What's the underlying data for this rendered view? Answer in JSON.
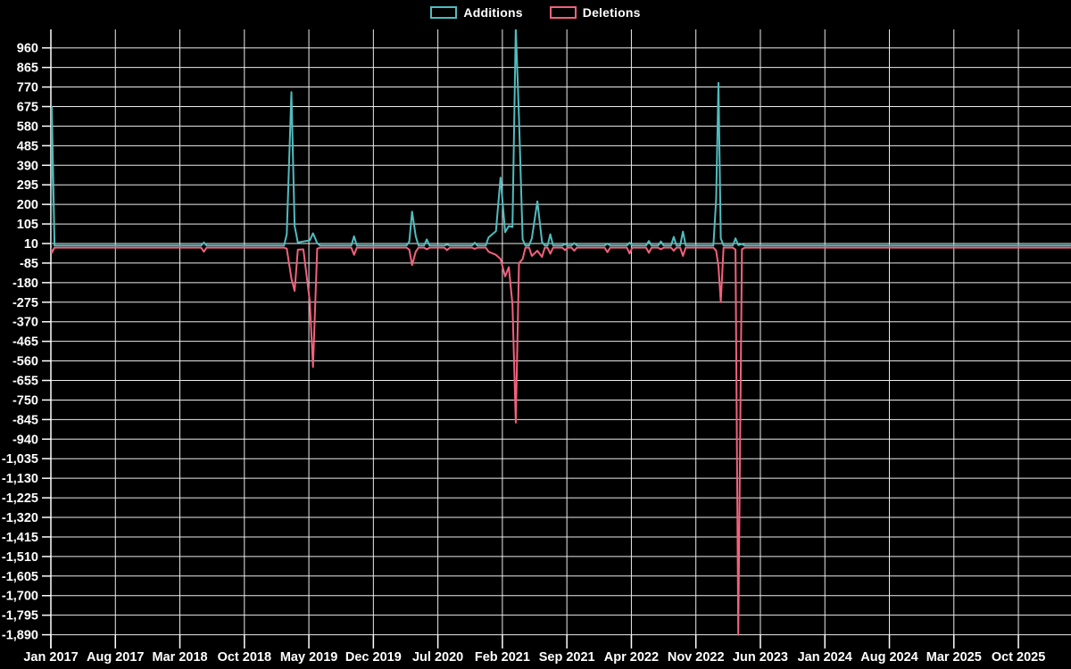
{
  "chart_data": {
    "type": "line",
    "title": "",
    "background_color": "#000000",
    "grid_color": "#ececec",
    "axis_color": "#ffffff",
    "label_color": "#ffffff",
    "legend_position": "top-center",
    "series": [
      {
        "name": "Additions",
        "color": "#4fbdbf",
        "baseline": 0
      },
      {
        "name": "Deletions",
        "color": "#f2617c",
        "baseline": -10
      }
    ],
    "x_axis": {
      "unit": "months since Jan 2017",
      "tick_interval_months": 7,
      "tick_labels": [
        "Jan 2017",
        "Aug 2017",
        "Mar 2018",
        "Oct 2018",
        "May 2019",
        "Dec 2019",
        "Jul 2020",
        "Feb 2021",
        "Sep 2021",
        "Apr 2022",
        "Nov 2022",
        "Jun 2023",
        "Jan 2024",
        "Aug 2024",
        "Mar 2025",
        "Oct 2025"
      ],
      "domain": [
        0,
        110.7
      ]
    },
    "y_axis": {
      "max": 960,
      "min": -1890,
      "step": 95,
      "zero_reference_tick": 10,
      "tick_labels": [
        "960",
        "865",
        "770",
        "675",
        "580",
        "485",
        "390",
        "295",
        "200",
        "105",
        "10",
        "-85",
        "-180",
        "-275",
        "-370",
        "-465",
        "-560",
        "-655",
        "-750",
        "-845",
        "-940",
        "-1,035",
        "-1,130",
        "-1,225",
        "-1,320",
        "-1,415",
        "-1,510",
        "-1,605",
        "-1,700",
        "-1,795",
        "-1,890"
      ]
    },
    "clip_note": "largest Additions spike exceeds the visible top of the plot (~>1050)",
    "events_format": [
      "x_months_since_jan2017",
      "additions",
      "deletions"
    ],
    "events": [
      [
        0.1,
        675,
        -35
      ],
      [
        16.6,
        15,
        -30
      ],
      [
        25.6,
        55,
        -15
      ],
      [
        26.1,
        745,
        -160
      ],
      [
        26.45,
        95,
        -220
      ],
      [
        26.8,
        15,
        -20
      ],
      [
        27.4,
        20,
        -18
      ],
      [
        28.1,
        25,
        -270
      ],
      [
        28.45,
        60,
        -590
      ],
      [
        28.9,
        12,
        -15
      ],
      [
        32.9,
        45,
        -45
      ],
      [
        38.9,
        20,
        -20
      ],
      [
        39.2,
        165,
        -95
      ],
      [
        39.6,
        45,
        -30
      ],
      [
        40.8,
        30,
        -18
      ],
      [
        43.0,
        5,
        -22
      ],
      [
        46.0,
        14,
        -16
      ],
      [
        47.5,
        40,
        -30
      ],
      [
        48.3,
        70,
        -45
      ],
      [
        48.8,
        330,
        -65
      ],
      [
        49.3,
        65,
        -150
      ],
      [
        49.7,
        95,
        -105
      ],
      [
        50.1,
        90,
        -285
      ],
      [
        50.45,
        1060,
        -860
      ],
      [
        50.8,
        620,
        -85
      ],
      [
        51.2,
        30,
        -65
      ],
      [
        52.2,
        35,
        -50
      ],
      [
        52.8,
        215,
        -25
      ],
      [
        53.3,
        18,
        -55
      ],
      [
        54.2,
        55,
        -40
      ],
      [
        55.8,
        8,
        -22
      ],
      [
        56.8,
        12,
        -25
      ],
      [
        60.4,
        10,
        -32
      ],
      [
        62.8,
        14,
        -38
      ],
      [
        64.9,
        22,
        -35
      ],
      [
        66.2,
        20,
        -18
      ],
      [
        67.6,
        42,
        -25
      ],
      [
        68.6,
        68,
        -50
      ],
      [
        72.2,
        225,
        -25
      ],
      [
        72.45,
        790,
        -100
      ],
      [
        72.7,
        35,
        -275
      ],
      [
        74.3,
        35,
        -20
      ],
      [
        74.6,
        2,
        -1890
      ],
      [
        75.0,
        8,
        -18
      ]
    ]
  }
}
